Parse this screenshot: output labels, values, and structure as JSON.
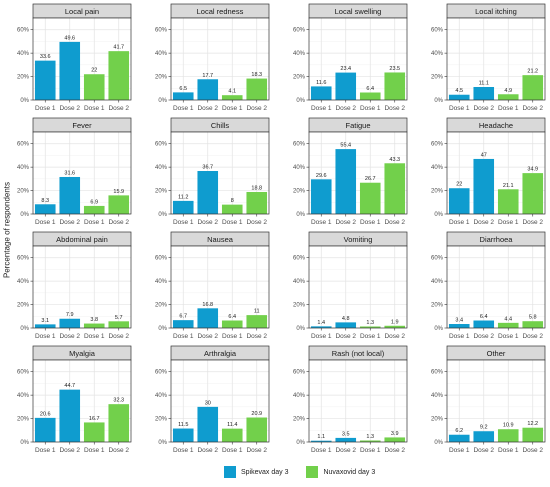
{
  "ylabel": "Percentage of respondents",
  "legend": [
    {
      "name": "Spikevax day 3",
      "color": "#0f9ccf"
    },
    {
      "name": "Nuvaxovid day 3",
      "color": "#72d04b"
    }
  ],
  "chart_data": {
    "type": "bar",
    "ylabel": "Percentage of respondents",
    "ylim": [
      0,
      70
    ],
    "yticks": [
      "0%",
      "20%",
      "40%",
      "60%"
    ],
    "categories": [
      "Dose 1",
      "Dose 2",
      "Dose 1",
      "Dose 2"
    ],
    "series": [
      {
        "name": "Spikevax day 3",
        "color": "#0f9ccf"
      },
      {
        "name": "Nuvaxovid day 3",
        "color": "#72d04b"
      }
    ],
    "grid": true,
    "legend_position": "bottom",
    "panels": [
      {
        "title": "Local pain",
        "values": [
          33.6,
          49.6,
          22,
          41.7
        ],
        "labels": [
          "33.6",
          "49.6",
          "22",
          "41.7"
        ]
      },
      {
        "title": "Local redness",
        "values": [
          6.5,
          17.7,
          4.1,
          18.3
        ],
        "labels": [
          "6.5",
          "17.7",
          "4.1",
          "18.3"
        ]
      },
      {
        "title": "Local swelling",
        "values": [
          11.6,
          23.4,
          6.4,
          23.5
        ],
        "labels": [
          "11.6",
          "23.4",
          "6.4",
          "23.5"
        ]
      },
      {
        "title": "Local itching",
        "values": [
          4.5,
          11.1,
          4.9,
          21.2
        ],
        "labels": [
          "4.5",
          "11.1",
          "4.9",
          "21.2"
        ]
      },
      {
        "title": "Fever",
        "values": [
          8.3,
          31.6,
          6.9,
          15.9
        ],
        "labels": [
          "8.3",
          "31.6",
          "6.9",
          "15.9"
        ]
      },
      {
        "title": "Chills",
        "values": [
          11.2,
          36.7,
          8,
          18.8
        ],
        "labels": [
          "11.2",
          "36.7",
          "8",
          "18.8"
        ]
      },
      {
        "title": "Fatigue",
        "values": [
          29.6,
          55.4,
          26.7,
          43.3
        ],
        "labels": [
          "29.6",
          "55.4",
          "26.7",
          "43.3"
        ]
      },
      {
        "title": "Headache",
        "values": [
          22,
          47,
          21.1,
          34.9
        ],
        "labels": [
          "22",
          "47",
          "21.1",
          "34.9"
        ]
      },
      {
        "title": "Abdominal pain",
        "values": [
          3.1,
          7.9,
          3.8,
          5.7
        ],
        "labels": [
          "3.1",
          "7.9",
          "3.8",
          "5.7"
        ]
      },
      {
        "title": "Nausea",
        "values": [
          6.7,
          16.8,
          6.4,
          11
        ],
        "labels": [
          "6.7",
          "16.8",
          "6.4",
          "11"
        ]
      },
      {
        "title": "Vomiting",
        "values": [
          1.4,
          4.8,
          1.3,
          1.9
        ],
        "labels": [
          "1.4",
          "4.8",
          "1.3",
          "1.9"
        ]
      },
      {
        "title": "Diarrhoea",
        "values": [
          3.4,
          6.4,
          4.4,
          5.8
        ],
        "labels": [
          "3.4",
          "6.4",
          "4.4",
          "5.8"
        ]
      },
      {
        "title": "Myalgia",
        "values": [
          20.6,
          44.7,
          16.7,
          32.3
        ],
        "labels": [
          "20.6",
          "44.7",
          "16.7",
          "32.3"
        ]
      },
      {
        "title": "Arthralgia",
        "values": [
          11.5,
          30,
          11.4,
          20.9
        ],
        "labels": [
          "11.5",
          "30",
          "11.4",
          "20.9"
        ]
      },
      {
        "title": "Rash (not local)",
        "values": [
          1.1,
          3.5,
          1.3,
          3.9
        ],
        "labels": [
          "1.1",
          "3.5",
          "1.3",
          "3.9"
        ]
      },
      {
        "title": "Other",
        "values": [
          6.2,
          9.2,
          10.9,
          12.2
        ],
        "labels": [
          "6.2",
          "9.2",
          "10.9",
          "12.2"
        ]
      }
    ]
  }
}
